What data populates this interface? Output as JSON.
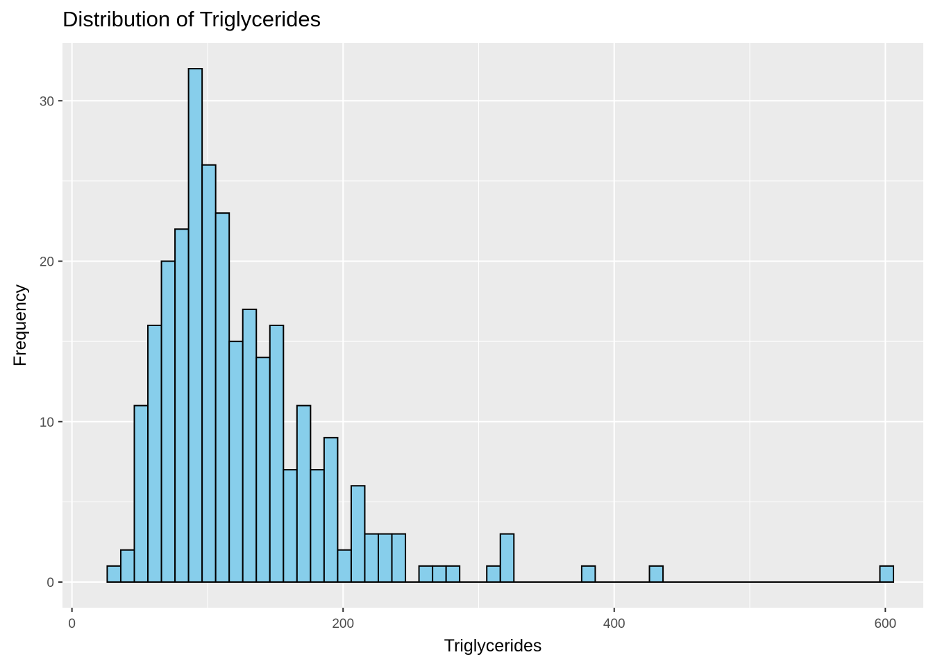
{
  "chart_data": {
    "type": "bar",
    "title": "Distribution of Triglycerides",
    "xlabel": "Triglycerides",
    "ylabel": "Frequency",
    "xlim": [
      -7,
      628
    ],
    "ylim": [
      -1.6,
      33.6
    ],
    "x_ticks": [
      0,
      200,
      400,
      600
    ],
    "x_tick_labels": [
      "0",
      "200",
      "400",
      "600"
    ],
    "y_ticks": [
      0,
      10,
      20,
      30
    ],
    "y_tick_labels": [
      "0",
      "10",
      "20",
      "30"
    ],
    "bin_width": 10,
    "bins_start": [
      26,
      36,
      46,
      56,
      66,
      76,
      86,
      96,
      106,
      116,
      126,
      136,
      146,
      156,
      166,
      176,
      186,
      196,
      206,
      216,
      226,
      236,
      246,
      256,
      266,
      276,
      286,
      296,
      306,
      316,
      326,
      336,
      346,
      356,
      366,
      376,
      386,
      396,
      406,
      416,
      426,
      436,
      446,
      456,
      466,
      476,
      486,
      496,
      506,
      516,
      526,
      536,
      546,
      556,
      566,
      576,
      586,
      596
    ],
    "values": [
      1,
      2,
      11,
      16,
      20,
      22,
      32,
      26,
      23,
      15,
      17,
      14,
      16,
      7,
      11,
      7,
      9,
      2,
      6,
      3,
      3,
      3,
      0,
      1,
      1,
      1,
      0,
      0,
      1,
      3,
      0,
      0,
      0,
      0,
      0,
      1,
      0,
      0,
      0,
      0,
      1,
      0,
      0,
      0,
      0,
      0,
      0,
      0,
      0,
      0,
      0,
      0,
      0,
      0,
      0,
      0,
      0,
      1
    ],
    "bar_fill": "#87ceeb",
    "bar_stroke": "#000000",
    "panel_background": "#ebebeb",
    "grid_color": "#ffffff"
  }
}
